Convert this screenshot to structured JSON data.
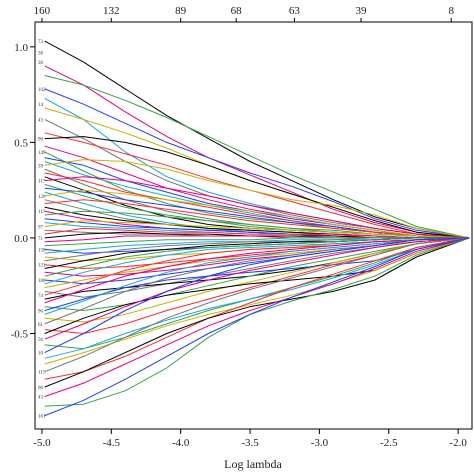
{
  "chart_data": {
    "type": "line",
    "title": "",
    "xlabel": "Log lambda",
    "ylabel": "",
    "xlim": [
      -5.05,
      -1.9
    ],
    "ylim": [
      -1.0,
      1.13
    ],
    "x_ticks": [
      -5.0,
      -4.5,
      -4.0,
      -3.5,
      -3.0,
      -2.5,
      -2.0
    ],
    "x_tick_labels": [
      "-5.0",
      "-4.5",
      "-4.0",
      "-3.5",
      "-3.0",
      "-2.5",
      "-2.0"
    ],
    "y_ticks": [
      -0.5,
      0.0,
      0.5,
      1.0
    ],
    "y_tick_labels": [
      "-0.5",
      "0.0",
      "0.5",
      "1.0"
    ],
    "top_axis_positions": [
      -5.0,
      -4.5,
      -4.0,
      -3.6,
      -3.18,
      -2.7,
      -2.05
    ],
    "top_axis_labels": [
      "160",
      "132",
      "89",
      "68",
      "63",
      "39",
      "8"
    ],
    "grid": false,
    "series_x": [
      -4.98,
      -4.7,
      -4.4,
      -4.1,
      -3.8,
      -3.5,
      -3.2,
      -2.9,
      -2.6,
      -2.3,
      -1.92
    ],
    "colors": [
      "#000000",
      "#e4007f",
      "#37a34a",
      "#1e3cff",
      "#1aa7e0",
      "#c8b400",
      "#777777",
      "#ff2a2a"
    ],
    "series": [
      {
        "values": [
          1.03,
          0.92,
          0.78,
          0.64,
          0.52,
          0.4,
          0.3,
          0.2,
          0.11,
          0.05,
          0
        ]
      },
      {
        "values": [
          0.9,
          0.8,
          0.66,
          0.53,
          0.42,
          0.33,
          0.24,
          0.15,
          0.08,
          0.03,
          0
        ]
      },
      {
        "values": [
          0.85,
          0.8,
          0.72,
          0.63,
          0.53,
          0.43,
          0.33,
          0.24,
          0.15,
          0.06,
          0
        ]
      },
      {
        "values": [
          0.78,
          0.7,
          0.6,
          0.5,
          0.42,
          0.34,
          0.27,
          0.19,
          0.1,
          0.04,
          0
        ]
      },
      {
        "values": [
          0.73,
          0.62,
          0.45,
          0.32,
          0.24,
          0.18,
          0.13,
          0.09,
          0.05,
          0.02,
          0
        ]
      },
      {
        "values": [
          0.68,
          0.62,
          0.55,
          0.47,
          0.38,
          0.3,
          0.23,
          0.16,
          0.09,
          0.03,
          0
        ]
      },
      {
        "values": [
          0.62,
          0.52,
          0.4,
          0.3,
          0.22,
          0.17,
          0.12,
          0.08,
          0.05,
          0.02,
          0
        ]
      },
      {
        "values": [
          0.55,
          0.5,
          0.44,
          0.38,
          0.31,
          0.25,
          0.19,
          0.13,
          0.07,
          0.02,
          0
        ]
      },
      {
        "values": [
          0.52,
          0.53,
          0.5,
          0.45,
          0.38,
          0.3,
          0.23,
          0.16,
          0.09,
          0.03,
          0
        ]
      },
      {
        "values": [
          0.48,
          0.42,
          0.34,
          0.26,
          0.2,
          0.15,
          0.11,
          0.07,
          0.04,
          0.01,
          0
        ]
      },
      {
        "values": [
          0.45,
          0.35,
          0.25,
          0.18,
          0.13,
          0.1,
          0.08,
          0.05,
          0.03,
          0.01,
          0
        ]
      },
      {
        "values": [
          0.42,
          0.38,
          0.3,
          0.24,
          0.18,
          0.14,
          0.1,
          0.07,
          0.04,
          0.01,
          0
        ]
      },
      {
        "values": [
          0.4,
          0.33,
          0.27,
          0.22,
          0.17,
          0.13,
          0.09,
          0.06,
          0.03,
          0.01,
          0
        ]
      },
      {
        "values": [
          0.38,
          0.41,
          0.4,
          0.36,
          0.3,
          0.25,
          0.2,
          0.17,
          0.12,
          0.05,
          0
        ]
      },
      {
        "values": [
          0.36,
          0.28,
          0.2,
          0.14,
          0.1,
          0.07,
          0.05,
          0.03,
          0.02,
          0.01,
          0
        ]
      },
      {
        "values": [
          0.34,
          0.3,
          0.24,
          0.2,
          0.16,
          0.12,
          0.09,
          0.06,
          0.03,
          0.01,
          0
        ]
      },
      {
        "values": [
          0.32,
          0.25,
          0.17,
          0.11,
          0.07,
          0.05,
          0.04,
          0.03,
          0.02,
          0.01,
          0
        ]
      },
      {
        "values": [
          0.3,
          0.32,
          0.3,
          0.26,
          0.22,
          0.17,
          0.13,
          0.09,
          0.05,
          0.02,
          0
        ]
      },
      {
        "values": [
          0.28,
          0.22,
          0.16,
          0.12,
          0.09,
          0.06,
          0.04,
          0.03,
          0.02,
          0.01,
          0
        ]
      },
      {
        "values": [
          0.26,
          0.24,
          0.2,
          0.17,
          0.14,
          0.11,
          0.08,
          0.06,
          0.03,
          0.01,
          0
        ]
      },
      {
        "values": [
          0.24,
          0.18,
          0.12,
          0.08,
          0.05,
          0.03,
          0.02,
          0.01,
          0.01,
          0,
          0
        ]
      },
      {
        "values": [
          0.22,
          0.25,
          0.23,
          0.2,
          0.17,
          0.14,
          0.11,
          0.07,
          0.04,
          0.01,
          0
        ]
      },
      {
        "values": [
          0.2,
          0.15,
          0.1,
          0.07,
          0.05,
          0.04,
          0.03,
          0.02,
          0.01,
          0,
          0
        ]
      },
      {
        "values": [
          0.18,
          0.2,
          0.18,
          0.15,
          0.12,
          0.09,
          0.07,
          0.05,
          0.03,
          0.01,
          0
        ]
      },
      {
        "values": [
          0.16,
          0.12,
          0.09,
          0.07,
          0.05,
          0.04,
          0.03,
          0.02,
          0.01,
          0,
          0
        ]
      },
      {
        "values": [
          0.14,
          0.1,
          0.07,
          0.05,
          0.04,
          0.03,
          0.02,
          0.02,
          0.01,
          0,
          0
        ]
      },
      {
        "values": [
          0.12,
          0.14,
          0.13,
          0.11,
          0.09,
          0.07,
          0.05,
          0.04,
          0.02,
          0.01,
          0
        ]
      },
      {
        "values": [
          0.1,
          0.08,
          0.06,
          0.05,
          0.04,
          0.03,
          0.02,
          0.01,
          0.01,
          0,
          0
        ]
      },
      {
        "values": [
          0.08,
          0.06,
          0.05,
          0.04,
          0.03,
          0.02,
          0.02,
          0.01,
          0.01,
          0,
          0
        ]
      },
      {
        "values": [
          0.06,
          0.09,
          0.08,
          0.07,
          0.06,
          0.05,
          0.04,
          0.03,
          0.02,
          0.01,
          0
        ]
      },
      {
        "values": [
          0.04,
          0.03,
          0.02,
          0.02,
          0.01,
          0.01,
          0.01,
          0,
          0,
          0,
          0
        ]
      },
      {
        "values": [
          0.02,
          0.05,
          0.04,
          0.03,
          0.03,
          0.02,
          0.02,
          0.01,
          0.01,
          0,
          0
        ]
      },
      {
        "values": [
          0.0,
          0.02,
          0.03,
          0.02,
          0.02,
          0.01,
          0.01,
          0.01,
          0,
          0,
          0
        ]
      },
      {
        "values": [
          -0.02,
          -0.01,
          0.01,
          0.01,
          0.01,
          0.01,
          0,
          0,
          0,
          0,
          0
        ]
      },
      {
        "values": [
          -0.04,
          -0.03,
          -0.02,
          -0.01,
          -0.01,
          -0.01,
          0,
          0,
          0,
          0,
          0
        ]
      },
      {
        "values": [
          -0.06,
          -0.08,
          -0.07,
          -0.06,
          -0.05,
          -0.04,
          -0.03,
          -0.02,
          -0.01,
          0,
          0
        ]
      },
      {
        "values": [
          -0.08,
          -0.06,
          -0.04,
          -0.03,
          -0.02,
          -0.02,
          -0.01,
          -0.01,
          0,
          0,
          0
        ]
      },
      {
        "values": [
          -0.1,
          -0.12,
          -0.11,
          -0.09,
          -0.08,
          -0.06,
          -0.05,
          -0.03,
          -0.02,
          -0.01,
          0
        ]
      },
      {
        "values": [
          -0.12,
          -0.09,
          -0.06,
          -0.04,
          -0.03,
          -0.02,
          -0.02,
          -0.01,
          -0.01,
          0,
          0
        ]
      },
      {
        "values": [
          -0.14,
          -0.16,
          -0.15,
          -0.13,
          -0.11,
          -0.09,
          -0.07,
          -0.05,
          -0.03,
          -0.01,
          0
        ]
      },
      {
        "values": [
          -0.16,
          -0.12,
          -0.08,
          -0.06,
          -0.04,
          -0.03,
          -0.02,
          -0.02,
          -0.01,
          0,
          0
        ]
      },
      {
        "values": [
          -0.18,
          -0.2,
          -0.19,
          -0.17,
          -0.14,
          -0.11,
          -0.09,
          -0.06,
          -0.04,
          -0.01,
          0
        ]
      },
      {
        "values": [
          -0.2,
          -0.15,
          -0.1,
          -0.07,
          -0.05,
          -0.04,
          -0.03,
          -0.02,
          -0.01,
          0,
          0
        ]
      },
      {
        "values": [
          -0.22,
          -0.24,
          -0.22,
          -0.19,
          -0.16,
          -0.13,
          -0.1,
          -0.07,
          -0.04,
          -0.01,
          0
        ]
      },
      {
        "values": [
          -0.24,
          -0.18,
          -0.13,
          -0.09,
          -0.06,
          -0.05,
          -0.04,
          -0.03,
          -0.02,
          -0.01,
          0
        ]
      },
      {
        "values": [
          -0.26,
          -0.22,
          -0.18,
          -0.15,
          -0.12,
          -0.1,
          -0.08,
          -0.06,
          -0.04,
          -0.02,
          0
        ]
      },
      {
        "values": [
          -0.28,
          -0.31,
          -0.28,
          -0.24,
          -0.2,
          -0.16,
          -0.12,
          -0.08,
          -0.05,
          -0.02,
          0
        ]
      },
      {
        "values": [
          -0.3,
          -0.24,
          -0.17,
          -0.12,
          -0.08,
          -0.06,
          -0.05,
          -0.04,
          -0.02,
          -0.01,
          0
        ]
      },
      {
        "values": [
          -0.32,
          -0.28,
          -0.26,
          -0.24,
          -0.22,
          -0.2,
          -0.17,
          -0.13,
          -0.08,
          -0.03,
          0
        ]
      },
      {
        "values": [
          -0.34,
          -0.27,
          -0.2,
          -0.15,
          -0.11,
          -0.08,
          -0.06,
          -0.04,
          -0.02,
          -0.01,
          0
        ]
      },
      {
        "values": [
          -0.36,
          -0.38,
          -0.35,
          -0.3,
          -0.25,
          -0.2,
          -0.15,
          -0.11,
          -0.07,
          -0.03,
          0
        ]
      },
      {
        "values": [
          -0.38,
          -0.32,
          -0.26,
          -0.22,
          -0.2,
          -0.18,
          -0.16,
          -0.14,
          -0.12,
          -0.06,
          0
        ]
      },
      {
        "values": [
          -0.4,
          -0.33,
          -0.25,
          -0.18,
          -0.13,
          -0.1,
          -0.07,
          -0.05,
          -0.03,
          -0.01,
          0
        ]
      },
      {
        "values": [
          -0.42,
          -0.44,
          -0.4,
          -0.34,
          -0.28,
          -0.23,
          -0.18,
          -0.13,
          -0.08,
          -0.03,
          0
        ]
      },
      {
        "values": [
          -0.45,
          -0.37,
          -0.28,
          -0.21,
          -0.16,
          -0.12,
          -0.09,
          -0.06,
          -0.04,
          -0.01,
          0
        ]
      },
      {
        "values": [
          -0.48,
          -0.5,
          -0.45,
          -0.38,
          -0.32,
          -0.26,
          -0.2,
          -0.14,
          -0.09,
          -0.03,
          0
        ]
      },
      {
        "values": [
          -0.5,
          -0.42,
          -0.35,
          -0.3,
          -0.27,
          -0.24,
          -0.22,
          -0.2,
          -0.17,
          -0.08,
          0
        ]
      },
      {
        "values": [
          -0.53,
          -0.45,
          -0.36,
          -0.28,
          -0.22,
          -0.17,
          -0.13,
          -0.09,
          -0.05,
          -0.02,
          0
        ]
      },
      {
        "values": [
          -0.56,
          -0.58,
          -0.52,
          -0.45,
          -0.38,
          -0.32,
          -0.26,
          -0.2,
          -0.13,
          -0.05,
          0
        ]
      },
      {
        "values": [
          -0.6,
          -0.5,
          -0.38,
          -0.28,
          -0.2,
          -0.14,
          -0.1,
          -0.07,
          -0.04,
          -0.01,
          0
        ]
      },
      {
        "values": [
          -0.63,
          -0.58,
          -0.5,
          -0.43,
          -0.37,
          -0.32,
          -0.27,
          -0.21,
          -0.14,
          -0.06,
          0
        ]
      },
      {
        "values": [
          -0.66,
          -0.6,
          -0.53,
          -0.46,
          -0.4,
          -0.35,
          -0.3,
          -0.24,
          -0.17,
          -0.08,
          0
        ]
      },
      {
        "values": [
          -0.7,
          -0.62,
          -0.52,
          -0.42,
          -0.34,
          -0.27,
          -0.21,
          -0.15,
          -0.09,
          -0.03,
          0
        ]
      },
      {
        "values": [
          -0.74,
          -0.7,
          -0.62,
          -0.52,
          -0.42,
          -0.34,
          -0.26,
          -0.19,
          -0.12,
          -0.05,
          0
        ]
      },
      {
        "values": [
          -0.78,
          -0.7,
          -0.6,
          -0.5,
          -0.42,
          -0.36,
          -0.32,
          -0.28,
          -0.22,
          -0.1,
          0
        ]
      },
      {
        "values": [
          -0.83,
          -0.76,
          -0.66,
          -0.56,
          -0.46,
          -0.38,
          -0.31,
          -0.24,
          -0.16,
          -0.07,
          0
        ]
      },
      {
        "values": [
          -0.88,
          -0.87,
          -0.8,
          -0.68,
          -0.52,
          -0.4,
          -0.33,
          -0.27,
          -0.2,
          -0.09,
          0
        ]
      },
      {
        "values": [
          -0.93,
          -0.85,
          -0.74,
          -0.62,
          -0.5,
          -0.4,
          -0.31,
          -0.23,
          -0.15,
          -0.06,
          0
        ]
      }
    ],
    "left_labels": [
      {
        "y": 1.03,
        "text": "73"
      },
      {
        "y": 0.97,
        "text": "38"
      },
      {
        "y": 0.92,
        "text": "36"
      },
      {
        "y": 0.78,
        "text": "102"
      },
      {
        "y": 0.7,
        "text": "14"
      },
      {
        "y": 0.62,
        "text": "43"
      },
      {
        "y": 0.52,
        "text": "90"
      },
      {
        "y": 0.45,
        "text": "149"
      },
      {
        "y": 0.38,
        "text": "39"
      },
      {
        "y": 0.3,
        "text": "117"
      },
      {
        "y": 0.22,
        "text": "126"
      },
      {
        "y": 0.14,
        "text": "117"
      },
      {
        "y": 0.06,
        "text": "97"
      },
      {
        "y": 0.0,
        "text": "71"
      },
      {
        "y": -0.06,
        "text": "158"
      },
      {
        "y": -0.14,
        "text": "121"
      },
      {
        "y": -0.22,
        "text": "106"
      },
      {
        "y": -0.3,
        "text": "74"
      },
      {
        "y": -0.38,
        "text": "96"
      },
      {
        "y": -0.45,
        "text": "61"
      },
      {
        "y": -0.53,
        "text": "56"
      },
      {
        "y": -0.6,
        "text": "10"
      },
      {
        "y": -0.7,
        "text": "115"
      },
      {
        "y": -0.78,
        "text": "66"
      },
      {
        "y": -0.83,
        "text": "43"
      },
      {
        "y": -0.93,
        "text": "161"
      }
    ]
  }
}
